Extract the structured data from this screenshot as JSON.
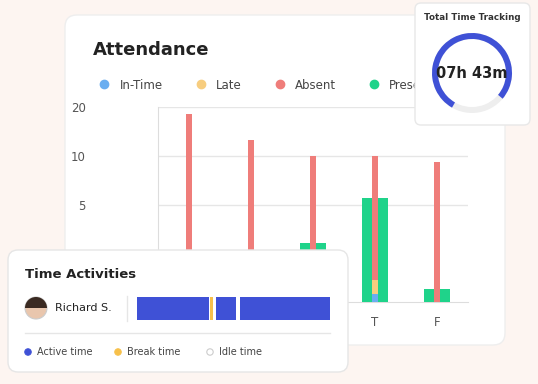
{
  "chart_data": {
    "type": "bar",
    "title": "Attendance",
    "categories": [
      null,
      null,
      null,
      "T",
      "F"
    ],
    "series": [
      {
        "name": "In-Time",
        "color": "#6aaef0",
        "values": [
          null,
          null,
          null,
          1.4,
          null
        ]
      },
      {
        "name": "Late",
        "color": "#f7cd7f",
        "values": [
          null,
          null,
          null,
          1.7,
          null
        ]
      },
      {
        "name": "Absent",
        "color": "#ef7d7a",
        "values": [
          18,
          12.5,
          10,
          10,
          9.2
        ]
      },
      {
        "name": "Present",
        "color": "#1fd38a",
        "values": [
          null,
          null,
          2.9,
          5.5,
          1.5
        ]
      }
    ],
    "ylim": [
      1.25,
      20
    ],
    "yticks": [
      5,
      10,
      20
    ],
    "log": "y",
    "grid": true,
    "legend": "upper left"
  },
  "total_time_tracking": {
    "title": "Total Time Tracking",
    "value": "07h 43m"
  },
  "time_activities": {
    "title": "Time Activities",
    "rows": [
      {
        "name": "Richard S."
      }
    ],
    "legend_items": [
      "Active time",
      "Break time",
      "Idle time"
    ]
  }
}
